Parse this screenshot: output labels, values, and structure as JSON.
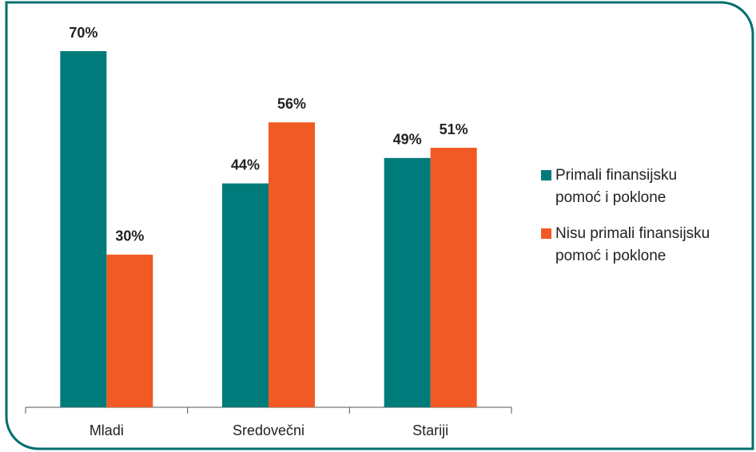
{
  "chart_data": {
    "type": "bar",
    "categories": [
      "Mladi",
      "Sredovečni",
      "Stariji"
    ],
    "series": [
      {
        "name": "Primali finansijsku pomoć i poklone",
        "color": "#007b7b",
        "values": [
          70,
          44,
          49
        ],
        "value_labels": [
          "70%",
          "44%",
          "49%"
        ]
      },
      {
        "name": "Nisu primali finansijsku pomoć i poklone",
        "color": "#f15a24",
        "values": [
          30,
          56,
          51
        ],
        "value_labels": [
          "30%",
          "56%",
          "51%"
        ]
      }
    ],
    "ylim": [
      0,
      70
    ],
    "legend": "right"
  }
}
